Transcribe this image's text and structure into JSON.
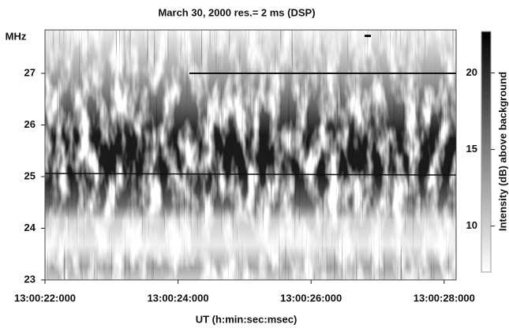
{
  "chart_data": {
    "type": "spectrogram",
    "title": "March 30, 2000   res.= 2 ms  (DSP)",
    "x_label": "UT (h:min:sec:msec)",
    "y_label": "MHz",
    "xlim": [
      22,
      28.18
    ],
    "xticks": [
      {
        "value": 22,
        "label": "13:00:22:000"
      },
      {
        "value": 24,
        "label": "13:00:24:000"
      },
      {
        "value": 26,
        "label": "13:00:26:000"
      },
      {
        "value": 28,
        "label": "13:00:28:000"
      }
    ],
    "ylim": [
      23,
      27.84
    ],
    "yticks": [
      23,
      24,
      25,
      26,
      27
    ],
    "colorbar": {
      "label": "Intensity (dB) above background",
      "lim": [
        7,
        22.7
      ],
      "ticks": [
        10,
        15,
        20
      ],
      "colors": [
        "#ffffff",
        "#000000"
      ]
    }
  }
}
